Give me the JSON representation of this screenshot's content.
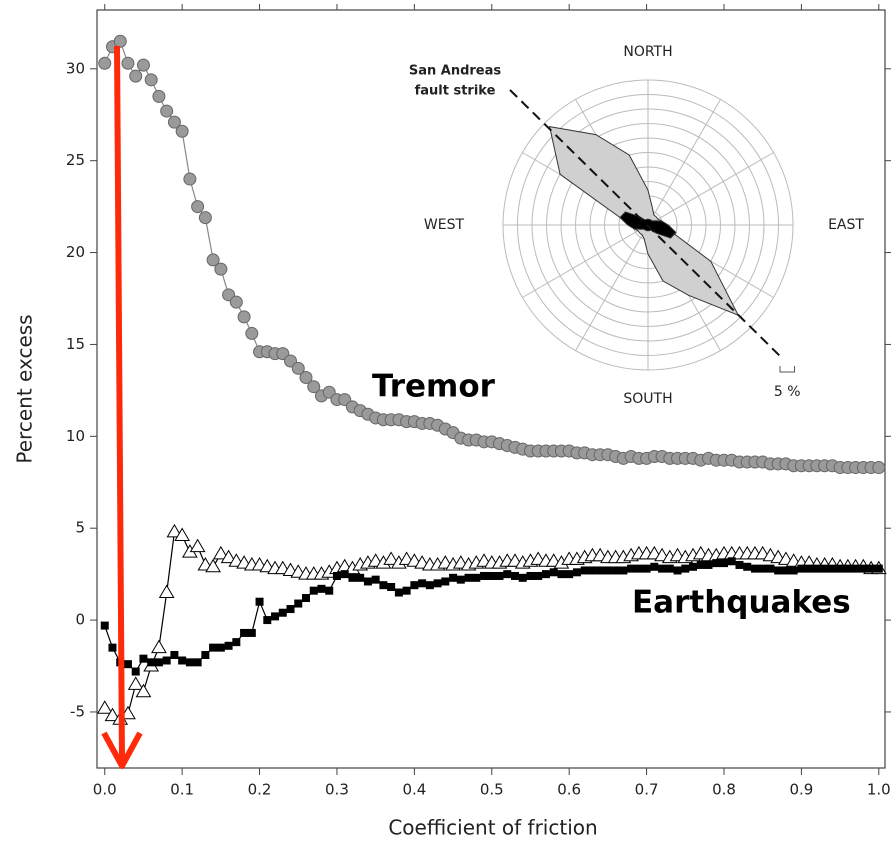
{
  "chart_data": [
    {
      "type": "scatter-line",
      "x_label": "Coefficient of friction",
      "y_label": "Percent excess",
      "annotations": [
        "Tremor",
        "Earthquakes"
      ],
      "xlim": [
        -0.01,
        1.008
      ],
      "ylim": [
        -8.05,
        33.2
      ],
      "xticks": [
        {
          "value": 0,
          "label": "0.0"
        },
        0.1,
        0.2,
        0.3,
        0.4,
        0.5,
        0.6,
        0.7,
        0.8,
        0.9,
        {
          "value": 1,
          "label": "1.0"
        }
      ],
      "yticks": [
        -5,
        0,
        5,
        10,
        15,
        20,
        25,
        30
      ],
      "x": [
        0,
        0.01,
        0.02,
        0.03,
        0.04,
        0.05,
        0.06,
        0.07,
        0.08,
        0.09,
        0.1,
        0.11,
        0.12,
        0.13,
        0.14,
        0.15,
        0.16,
        0.17,
        0.18,
        0.19,
        0.2,
        0.21,
        0.22,
        0.23,
        0.24,
        0.25,
        0.26,
        0.27,
        0.28,
        0.29,
        0.3,
        0.31,
        0.32,
        0.33,
        0.34,
        0.35,
        0.36,
        0.37,
        0.38,
        0.39,
        0.4,
        0.41,
        0.42,
        0.43,
        0.44,
        0.45,
        0.46,
        0.47,
        0.48,
        0.49,
        0.5,
        0.51,
        0.52,
        0.53,
        0.54,
        0.55,
        0.56,
        0.57,
        0.58,
        0.59,
        0.6,
        0.61,
        0.62,
        0.63,
        0.64,
        0.65,
        0.66,
        0.67,
        0.68,
        0.69,
        0.7,
        0.71,
        0.72,
        0.73,
        0.74,
        0.75,
        0.76,
        0.77,
        0.78,
        0.79,
        0.8,
        0.81,
        0.82,
        0.83,
        0.84,
        0.85,
        0.86,
        0.87,
        0.88,
        0.89,
        0.9,
        0.91,
        0.92,
        0.93,
        0.94,
        0.95,
        0.96,
        0.97,
        0.98,
        0.99,
        1
      ],
      "series": [
        {
          "marker": "triangle",
          "color": "#000000",
          "values": [
            -4.8,
            -5.2,
            -5.4,
            -5.1,
            -3.5,
            -3.9,
            -2.5,
            -1.5,
            1.5,
            4.8,
            4.6,
            3.7,
            4.0,
            3.0,
            2.9,
            3.6,
            3.4,
            3.2,
            3.1,
            3.0,
            3.0,
            2.9,
            2.8,
            2.8,
            2.7,
            2.6,
            2.5,
            2.5,
            2.5,
            2.6,
            2.8,
            2.9,
            2.8,
            3.0,
            3.1,
            3.2,
            3.1,
            3.3,
            3.1,
            3.3,
            3.2,
            3.1,
            3.0,
            3.0,
            3.1,
            3.0,
            3.1,
            3.0,
            3.1,
            3.2,
            3.1,
            3.1,
            3.2,
            3.2,
            3.1,
            3.2,
            3.3,
            3.2,
            3.2,
            3.1,
            3.3,
            3.3,
            3.4,
            3.5,
            3.5,
            3.4,
            3.4,
            3.4,
            3.5,
            3.6,
            3.6,
            3.6,
            3.5,
            3.4,
            3.5,
            3.4,
            3.5,
            3.6,
            3.5,
            3.5,
            3.6,
            3.6,
            3.6,
            3.6,
            3.6,
            3.6,
            3.5,
            3.4,
            3.3,
            3.2,
            3.1,
            3.1,
            3.0,
            3.0,
            3.0,
            2.9,
            2.9,
            2.9,
            2.9,
            2.8,
            2.8
          ]
        },
        {
          "marker": "square",
          "color": "#000000",
          "values": [
            -0.3,
            -1.5,
            -2.3,
            -2.4,
            -2.8,
            -2.1,
            -2.3,
            -2.3,
            -2.2,
            -1.9,
            -2.2,
            -2.3,
            -2.3,
            -1.9,
            -1.5,
            -1.5,
            -1.4,
            -1.2,
            -0.7,
            -0.7,
            1.0,
            0.0,
            0.2,
            0.4,
            0.6,
            0.9,
            1.2,
            1.6,
            1.7,
            1.6,
            2.4,
            2.5,
            2.3,
            2.3,
            2.1,
            2.2,
            1.9,
            1.8,
            1.5,
            1.6,
            1.9,
            2.0,
            1.9,
            2.0,
            2.1,
            2.3,
            2.2,
            2.3,
            2.3,
            2.4,
            2.4,
            2.4,
            2.5,
            2.4,
            2.3,
            2.4,
            2.4,
            2.5,
            2.6,
            2.5,
            2.5,
            2.6,
            2.7,
            2.7,
            2.7,
            2.7,
            2.7,
            2.7,
            2.8,
            2.8,
            2.8,
            2.9,
            2.8,
            2.8,
            2.7,
            2.8,
            2.9,
            3.0,
            3.0,
            3.1,
            3.1,
            3.2,
            3.0,
            2.9,
            2.8,
            2.8,
            2.8,
            2.7,
            2.7,
            2.7,
            2.8,
            2.8,
            2.8,
            2.8,
            2.8,
            2.8,
            2.8,
            2.8,
            2.8,
            2.8,
            2.8
          ]
        },
        {
          "marker": "circle",
          "color": "#9a9a9a",
          "values": [
            30.3,
            31.2,
            31.5,
            30.3,
            29.6,
            30.2,
            29.4,
            28.5,
            27.7,
            27.1,
            26.6,
            24.0,
            22.5,
            21.9,
            19.6,
            19.1,
            17.7,
            17.3,
            16.5,
            15.6,
            14.6,
            14.6,
            14.5,
            14.5,
            14.1,
            13.7,
            13.2,
            12.7,
            12.2,
            12.4,
            12.0,
            12.0,
            11.6,
            11.4,
            11.2,
            11.0,
            10.9,
            10.9,
            10.9,
            10.8,
            10.8,
            10.7,
            10.7,
            10.6,
            10.4,
            10.2,
            9.9,
            9.8,
            9.8,
            9.7,
            9.7,
            9.6,
            9.5,
            9.4,
            9.3,
            9.2,
            9.2,
            9.2,
            9.2,
            9.2,
            9.2,
            9.1,
            9.1,
            9.0,
            9.0,
            9.0,
            8.9,
            8.8,
            8.9,
            8.8,
            8.8,
            8.9,
            8.9,
            8.8,
            8.8,
            8.8,
            8.8,
            8.7,
            8.8,
            8.7,
            8.7,
            8.7,
            8.6,
            8.6,
            8.6,
            8.6,
            8.5,
            8.5,
            8.5,
            8.4,
            8.4,
            8.4,
            8.4,
            8.4,
            8.4,
            8.3,
            8.3,
            8.3,
            8.3,
            8.3,
            8.3
          ]
        }
      ]
    },
    {
      "type": "rose",
      "direction_labels": [
        "NORTH",
        "EAST",
        "SOUTH",
        "WEST"
      ],
      "annotation": [
        "San Andreas",
        "fault strike"
      ],
      "scale_bar": {
        "value": 5,
        "label": "5 %"
      },
      "rlim": [
        0,
        50
      ],
      "rticks": [
        5,
        10,
        15,
        20,
        25,
        30,
        35,
        40,
        45,
        50
      ],
      "bearings": [
        0,
        15,
        30,
        45,
        60,
        75,
        90,
        105,
        120,
        135,
        150,
        165,
        180,
        195,
        210,
        225,
        240,
        255,
        270,
        285,
        300,
        315,
        330,
        345
      ],
      "series": [
        {
          "color": "#d0d0d0",
          "values": [
            12,
            6,
            4,
            4,
            4,
            5,
            6,
            8,
            25,
            44,
            28,
            20,
            10,
            5,
            4,
            4,
            4,
            5,
            6,
            10,
            35,
            48,
            36,
            25
          ]
        },
        {
          "color": "#000000",
          "values": [
            2,
            2,
            2,
            2,
            3,
            5,
            7,
            10,
            9,
            4,
            2,
            2,
            2,
            2,
            2,
            2,
            3,
            5,
            7,
            10,
            9,
            4,
            2,
            2
          ]
        }
      ]
    }
  ]
}
